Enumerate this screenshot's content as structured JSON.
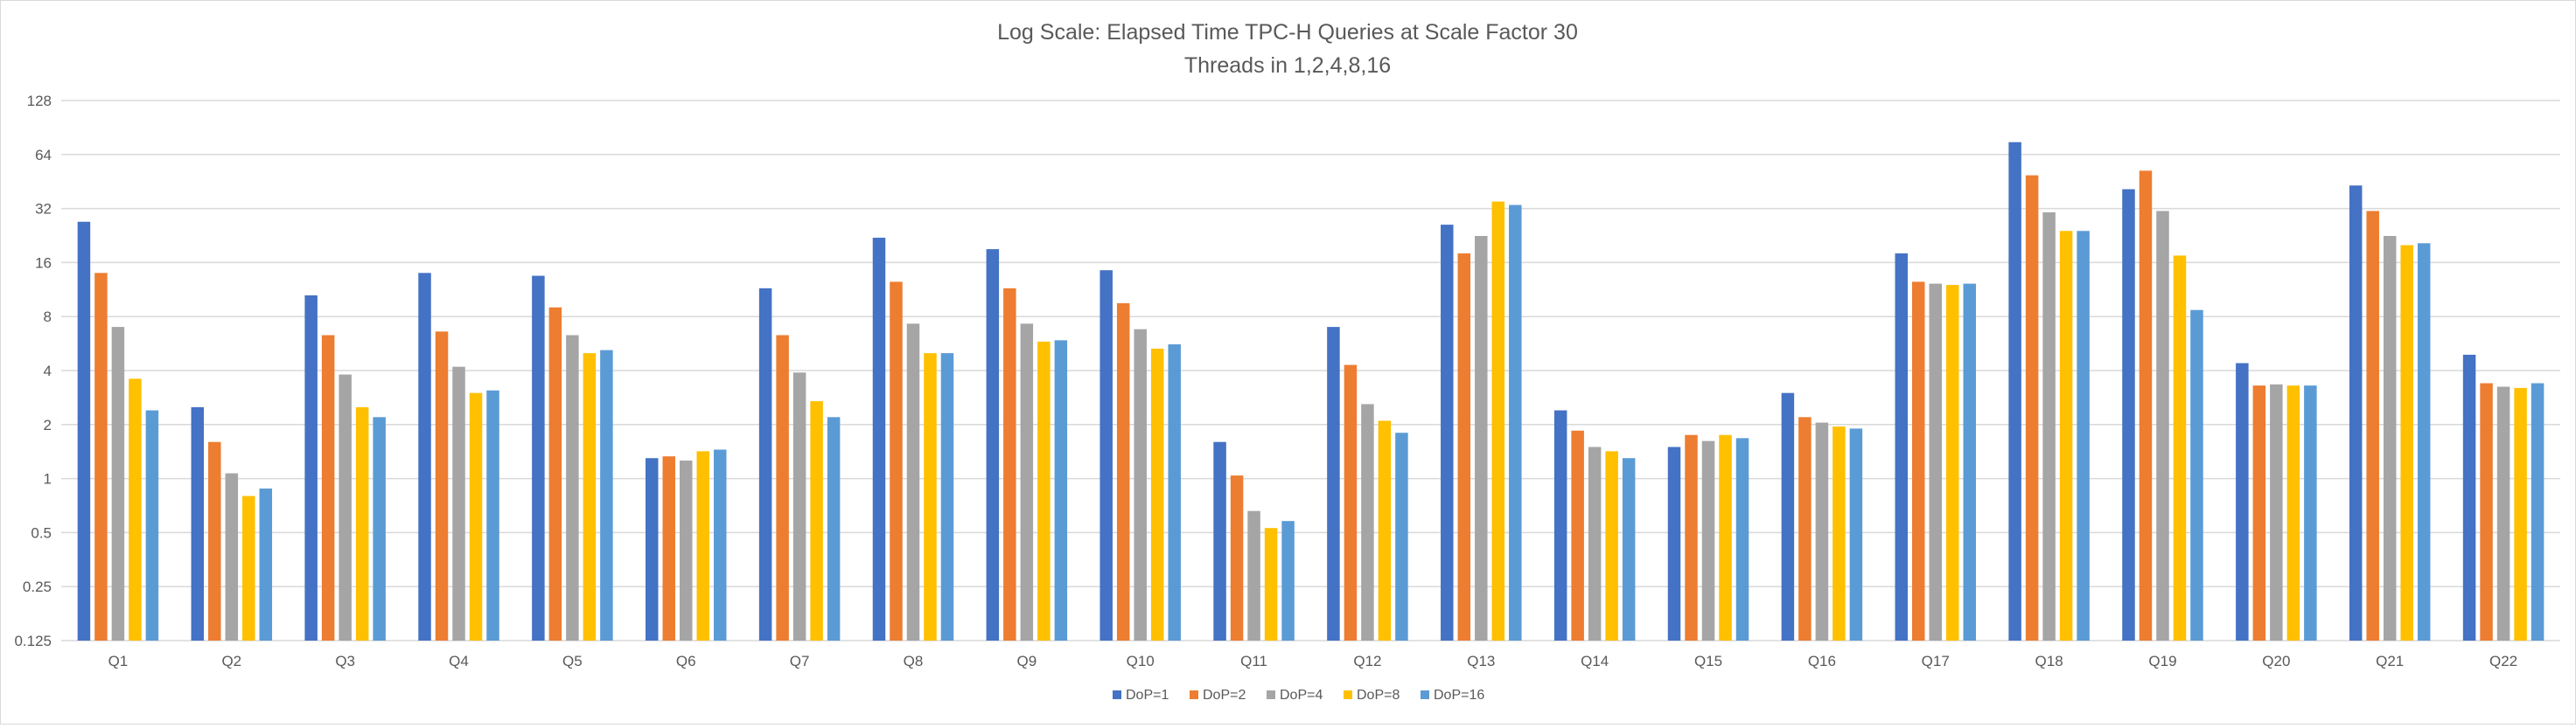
{
  "chart_data": {
    "type": "bar",
    "title": "Log Scale:  Elapsed Time TPC-H Queries at Scale Factor 30",
    "subtitle": "Threads in 1,2,4,8,16",
    "xlabel": "",
    "ylabel": "",
    "y_scale": "log2",
    "ylim": [
      0.125,
      128
    ],
    "y_ticks": [
      0.125,
      0.25,
      0.5,
      1,
      2,
      4,
      8,
      16,
      32,
      64,
      128
    ],
    "y_tick_labels": [
      "0.125",
      "0.25",
      "0.5",
      "1",
      "2",
      "4",
      "8",
      "16",
      "32",
      "64",
      "128"
    ],
    "grid": true,
    "legend_position": "bottom",
    "categories": [
      "Q1",
      "Q2",
      "Q3",
      "Q4",
      "Q5",
      "Q6",
      "Q7",
      "Q8",
      "Q9",
      "Q10",
      "Q11",
      "Q12",
      "Q13",
      "Q14",
      "Q15",
      "Q16",
      "Q17",
      "Q18",
      "Q19",
      "Q20",
      "Q21",
      "Q22"
    ],
    "series": [
      {
        "name": "DoP=1",
        "color": "#4472c4",
        "values": [
          27,
          2.5,
          10.5,
          14,
          13.5,
          1.3,
          11.5,
          22,
          19,
          14.5,
          1.6,
          7,
          26,
          2.4,
          1.5,
          3,
          18,
          75,
          41,
          4.4,
          43,
          4.9
        ]
      },
      {
        "name": "DoP=2",
        "color": "#ed7d31",
        "values": [
          14,
          1.6,
          6.3,
          6.6,
          9,
          1.33,
          6.3,
          12.5,
          11.5,
          9.5,
          1.04,
          4.3,
          18,
          1.85,
          1.75,
          2.2,
          12.5,
          49,
          52,
          3.3,
          31,
          3.4
        ]
      },
      {
        "name": "DoP=4",
        "color": "#a5a5a5",
        "values": [
          7,
          1.07,
          3.8,
          4.2,
          6.3,
          1.26,
          3.9,
          7.3,
          7.3,
          6.8,
          0.66,
          2.6,
          22.5,
          1.5,
          1.62,
          2.05,
          12.2,
          30.5,
          31,
          3.35,
          22.5,
          3.25
        ]
      },
      {
        "name": "DoP=8",
        "color": "#ffc000",
        "values": [
          3.6,
          0.8,
          2.5,
          3,
          5,
          1.42,
          2.7,
          5,
          5.8,
          5.3,
          0.53,
          2.1,
          35,
          1.42,
          1.75,
          1.95,
          12,
          24,
          17.5,
          3.3,
          20,
          3.2
        ]
      },
      {
        "name": "DoP=16",
        "color": "#5b9bd5",
        "values": [
          2.4,
          0.88,
          2.2,
          3.1,
          5.2,
          1.45,
          2.2,
          5,
          5.9,
          5.6,
          0.58,
          1.8,
          33.5,
          1.3,
          1.68,
          1.9,
          12.2,
          24,
          8.7,
          3.3,
          20.5,
          3.4
        ]
      }
    ]
  }
}
